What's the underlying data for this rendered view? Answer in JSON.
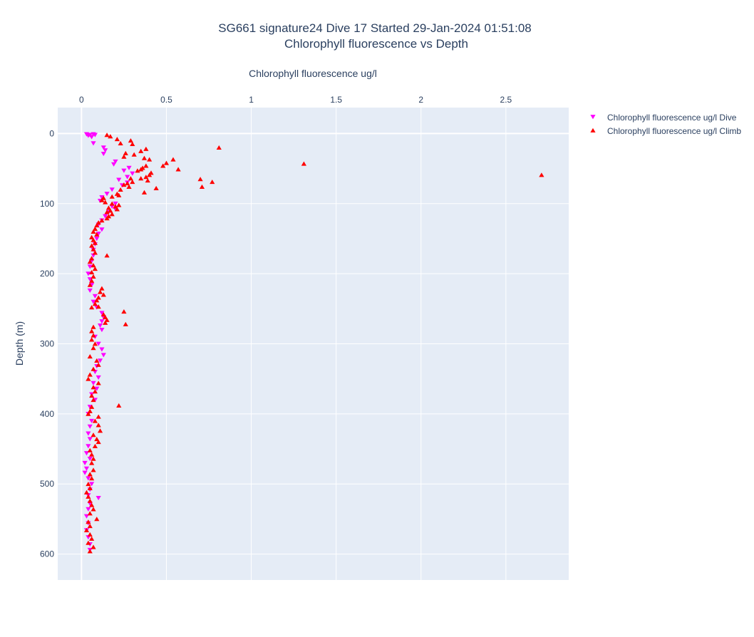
{
  "chart_data": {
    "type": "scatter",
    "title": "SG661 signature24 Dive 17 Started 29-Jan-2024 01:51:08",
    "subtitle": "Chlorophyll fluorescence vs Depth",
    "xlabel": "Chlorophyll fluorescence ug/l",
    "ylabel": "Depth (m)",
    "xlim": [
      -0.14,
      2.87
    ],
    "ylim": [
      637,
      -37
    ],
    "x_ticks": [
      0,
      0.5,
      1,
      1.5,
      2,
      2.5
    ],
    "x_tick_labels": [
      "0",
      "0.5",
      "1",
      "1.5",
      "2",
      "2.5"
    ],
    "y_ticks": [
      0,
      100,
      200,
      300,
      400,
      500,
      600
    ],
    "y_tick_labels": [
      "0",
      "100",
      "200",
      "300",
      "400",
      "500",
      "600"
    ],
    "grid": true,
    "legend_position": "top-right",
    "series": [
      {
        "name": "Chlorophyll fluorescence ug/l Dive",
        "color": "#ff00ff",
        "marker": "triangle-down",
        "points": [
          [
            0.03,
            1
          ],
          [
            0.05,
            2
          ],
          [
            0.07,
            1
          ],
          [
            0.08,
            2
          ],
          [
            0.06,
            5
          ],
          [
            0.04,
            3
          ],
          [
            0.07,
            14
          ],
          [
            0.13,
            20
          ],
          [
            0.14,
            24
          ],
          [
            0.13,
            29
          ],
          [
            0.2,
            40
          ],
          [
            0.19,
            44
          ],
          [
            0.28,
            49
          ],
          [
            0.25,
            53
          ],
          [
            0.3,
            57
          ],
          [
            0.27,
            62
          ],
          [
            0.22,
            66
          ],
          [
            0.27,
            70
          ],
          [
            0.24,
            74
          ],
          [
            0.18,
            80
          ],
          [
            0.15,
            86
          ],
          [
            0.12,
            91
          ],
          [
            0.11,
            96
          ],
          [
            0.2,
            100
          ],
          [
            0.18,
            104
          ],
          [
            0.2,
            108
          ],
          [
            0.16,
            112
          ],
          [
            0.14,
            118
          ],
          [
            0.12,
            124
          ],
          [
            0.1,
            130
          ],
          [
            0.12,
            137
          ],
          [
            0.1,
            143
          ],
          [
            0.09,
            150
          ],
          [
            0.08,
            158
          ],
          [
            0.07,
            166
          ],
          [
            0.07,
            174
          ],
          [
            0.06,
            182
          ],
          [
            0.05,
            190
          ],
          [
            0.04,
            200
          ],
          [
            0.05,
            208
          ],
          [
            0.06,
            216
          ],
          [
            0.05,
            224
          ],
          [
            0.08,
            232
          ],
          [
            0.07,
            240
          ],
          [
            0.09,
            248
          ],
          [
            0.12,
            256
          ],
          [
            0.13,
            262
          ],
          [
            0.12,
            268
          ],
          [
            0.11,
            274
          ],
          [
            0.12,
            280
          ],
          [
            0.08,
            290
          ],
          [
            0.1,
            300
          ],
          [
            0.12,
            308
          ],
          [
            0.13,
            316
          ],
          [
            0.11,
            324
          ],
          [
            0.09,
            332
          ],
          [
            0.08,
            340
          ],
          [
            0.1,
            348
          ],
          [
            0.07,
            356
          ],
          [
            0.09,
            364
          ],
          [
            0.06,
            372
          ],
          [
            0.08,
            380
          ],
          [
            0.05,
            390
          ],
          [
            0.04,
            400
          ],
          [
            0.06,
            410
          ],
          [
            0.05,
            418
          ],
          [
            0.04,
            428
          ],
          [
            0.05,
            436
          ],
          [
            0.04,
            446
          ],
          [
            0.03,
            456
          ],
          [
            0.05,
            464
          ],
          [
            0.02,
            470
          ],
          [
            0.03,
            478
          ],
          [
            0.02,
            484
          ],
          [
            0.04,
            492
          ],
          [
            0.06,
            500
          ],
          [
            0.05,
            508
          ],
          [
            0.04,
            516
          ],
          [
            0.1,
            520
          ],
          [
            0.05,
            528
          ],
          [
            0.04,
            536
          ],
          [
            0.03,
            546
          ],
          [
            0.04,
            556
          ],
          [
            0.03,
            566
          ],
          [
            0.04,
            576
          ],
          [
            0.05,
            586
          ],
          [
            0.05,
            594
          ]
        ]
      },
      {
        "name": "Chlorophyll fluorescence ug/l Climb",
        "color": "#ff0000",
        "marker": "triangle-up",
        "points": [
          [
            0.15,
            2
          ],
          [
            0.17,
            4
          ],
          [
            0.21,
            8
          ],
          [
            0.29,
            10
          ],
          [
            0.23,
            14
          ],
          [
            0.3,
            15
          ],
          [
            0.38,
            22
          ],
          [
            0.81,
            20
          ],
          [
            0.35,
            25
          ],
          [
            0.26,
            28
          ],
          [
            0.31,
            30
          ],
          [
            0.25,
            33
          ],
          [
            0.37,
            35
          ],
          [
            0.4,
            37
          ],
          [
            0.54,
            37
          ],
          [
            0.5,
            42
          ],
          [
            0.48,
            46
          ],
          [
            0.38,
            46
          ],
          [
            1.31,
            43
          ],
          [
            0.36,
            49
          ],
          [
            0.35,
            51
          ],
          [
            0.57,
            51
          ],
          [
            0.33,
            53
          ],
          [
            0.41,
            56
          ],
          [
            0.4,
            59
          ],
          [
            2.71,
            59
          ],
          [
            0.38,
            62
          ],
          [
            0.35,
            64
          ],
          [
            0.29,
            64
          ],
          [
            0.7,
            65
          ],
          [
            0.77,
            69
          ],
          [
            0.39,
            67
          ],
          [
            0.3,
            69
          ],
          [
            0.27,
            71
          ],
          [
            0.25,
            73
          ],
          [
            0.28,
            76
          ],
          [
            0.71,
            76
          ],
          [
            0.44,
            78
          ],
          [
            0.23,
            80
          ],
          [
            0.37,
            84
          ],
          [
            0.21,
            86
          ],
          [
            0.22,
            88
          ],
          [
            0.18,
            90
          ],
          [
            0.13,
            92
          ],
          [
            0.12,
            95
          ],
          [
            0.14,
            98
          ],
          [
            0.18,
            100
          ],
          [
            0.22,
            102
          ],
          [
            0.2,
            104
          ],
          [
            0.16,
            106
          ],
          [
            0.21,
            108
          ],
          [
            0.17,
            110
          ],
          [
            0.15,
            112
          ],
          [
            0.18,
            115
          ],
          [
            0.16,
            118
          ],
          [
            0.15,
            121
          ],
          [
            0.12,
            124
          ],
          [
            0.1,
            127
          ],
          [
            0.09,
            131
          ],
          [
            0.08,
            136
          ],
          [
            0.07,
            140
          ],
          [
            0.09,
            144
          ],
          [
            0.06,
            148
          ],
          [
            0.07,
            152
          ],
          [
            0.08,
            156
          ],
          [
            0.06,
            160
          ],
          [
            0.07,
            165
          ],
          [
            0.08,
            170
          ],
          [
            0.15,
            174
          ],
          [
            0.06,
            178
          ],
          [
            0.05,
            183
          ],
          [
            0.07,
            188
          ],
          [
            0.08,
            193
          ],
          [
            0.06,
            198
          ],
          [
            0.07,
            204
          ],
          [
            0.06,
            210
          ],
          [
            0.05,
            216
          ],
          [
            0.12,
            221
          ],
          [
            0.11,
            226
          ],
          [
            0.13,
            230
          ],
          [
            0.1,
            234
          ],
          [
            0.09,
            238
          ],
          [
            0.08,
            243
          ],
          [
            0.1,
            247
          ],
          [
            0.06,
            248
          ],
          [
            0.25,
            254
          ],
          [
            0.13,
            258
          ],
          [
            0.14,
            262
          ],
          [
            0.15,
            266
          ],
          [
            0.26,
            272
          ],
          [
            0.14,
            270
          ],
          [
            0.07,
            276
          ],
          [
            0.06,
            282
          ],
          [
            0.07,
            288
          ],
          [
            0.06,
            294
          ],
          [
            0.08,
            300
          ],
          [
            0.07,
            306
          ],
          [
            0.05,
            318
          ],
          [
            0.09,
            324
          ],
          [
            0.1,
            330
          ],
          [
            0.07,
            336
          ],
          [
            0.05,
            344
          ],
          [
            0.04,
            350
          ],
          [
            0.1,
            356
          ],
          [
            0.07,
            362
          ],
          [
            0.08,
            368
          ],
          [
            0.06,
            374
          ],
          [
            0.07,
            380
          ],
          [
            0.22,
            388
          ],
          [
            0.06,
            390
          ],
          [
            0.05,
            396
          ],
          [
            0.04,
            400
          ],
          [
            0.1,
            404
          ],
          [
            0.08,
            410
          ],
          [
            0.1,
            416
          ],
          [
            0.11,
            424
          ],
          [
            0.07,
            430
          ],
          [
            0.09,
            436
          ],
          [
            0.1,
            440
          ],
          [
            0.08,
            446
          ],
          [
            0.05,
            452
          ],
          [
            0.06,
            458
          ],
          [
            0.07,
            464
          ],
          [
            0.06,
            470
          ],
          [
            0.07,
            480
          ],
          [
            0.05,
            486
          ],
          [
            0.06,
            492
          ],
          [
            0.04,
            500
          ],
          [
            0.05,
            506
          ],
          [
            0.03,
            512
          ],
          [
            0.04,
            518
          ],
          [
            0.05,
            524
          ],
          [
            0.06,
            530
          ],
          [
            0.07,
            536
          ],
          [
            0.05,
            542
          ],
          [
            0.09,
            550
          ],
          [
            0.04,
            554
          ],
          [
            0.05,
            560
          ],
          [
            0.03,
            566
          ],
          [
            0.05,
            572
          ],
          [
            0.06,
            578
          ],
          [
            0.04,
            584
          ],
          [
            0.07,
            590
          ],
          [
            0.05,
            596
          ]
        ]
      }
    ]
  }
}
